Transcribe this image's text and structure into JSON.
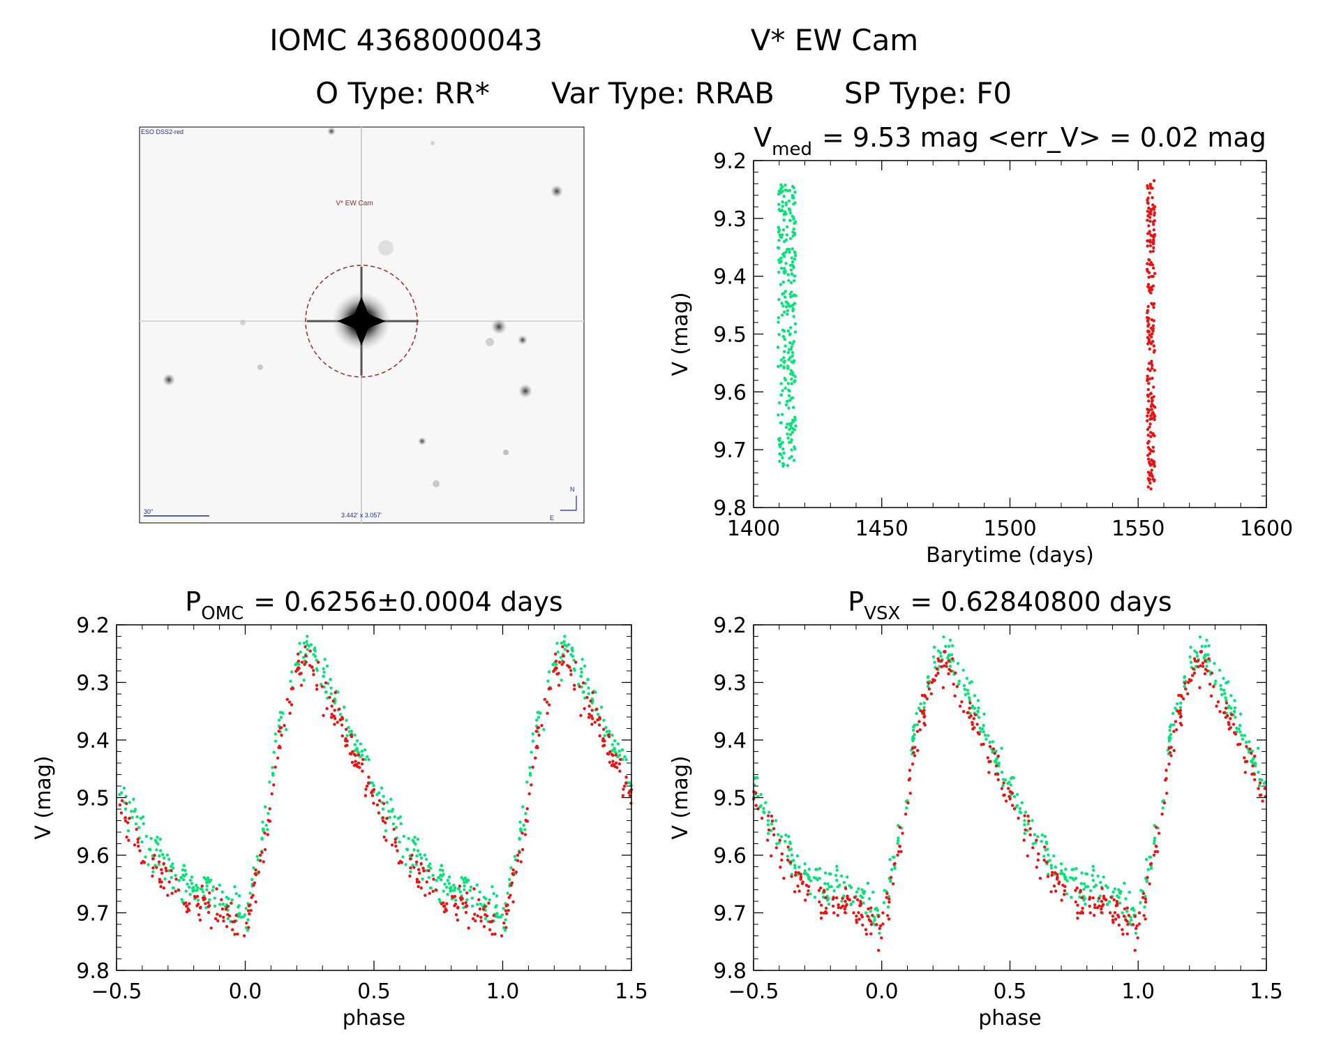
{
  "header": {
    "title_id": "IOMC 4368000043",
    "title_name": "V* EW Cam",
    "subtitle_otype": "O Type: RR*",
    "subtitle_vartype": "Var Type: RRAB",
    "subtitle_sptype": "SP Type: F0"
  },
  "finder": {
    "survey": "ESO DSS2-red",
    "target": "V* EW Cam",
    "scale_label": "30\"",
    "fov": "3.442' x 3.057'",
    "north": "N",
    "east": "E"
  },
  "colors": {
    "camera1": "#00e676",
    "camera2": "#ee1111",
    "marker": "#aa2222",
    "label": "#1a2a99"
  },
  "chart_data": [
    {
      "id": "lightcurve",
      "type": "scatter",
      "title_prefix": "V",
      "title_sub": "med",
      "title_rest": "= 9.53 mag <err_V> = 0.02 mag",
      "xlabel": "Barytime (days)",
      "ylabel": "V (mag)",
      "xlim": [
        1400,
        1600
      ],
      "ylim": [
        9.2,
        9.8
      ],
      "y_inverted": true,
      "xticks": [
        "1400",
        "1450",
        "1500",
        "1550",
        "1600"
      ],
      "yticks": [
        "9.2",
        "9.3",
        "9.4",
        "9.5",
        "9.6",
        "9.7",
        "9.8"
      ],
      "series": [
        {
          "name": "camera1",
          "color": "#00e676",
          "x_range": [
            1409.5,
            1416.5
          ],
          "y_range": [
            9.24,
            9.73
          ],
          "n_points": 260
        },
        {
          "name": "camera2",
          "color": "#ee1111",
          "x_range": [
            1553.5,
            1556.5
          ],
          "y_range": [
            9.23,
            9.77
          ],
          "n_points": 220
        }
      ]
    },
    {
      "id": "phase-omc",
      "type": "scatter",
      "title_prefix": "P",
      "title_sub": "OMC",
      "title_rest": "= 0.6256±0.0004 days",
      "xlabel": "phase",
      "ylabel": "V (mag)",
      "xlim": [
        -0.5,
        1.5
      ],
      "ylim": [
        9.2,
        9.8
      ],
      "y_inverted": true,
      "xticks": [
        "−0.5",
        "0.0",
        "0.5",
        "1.0",
        "1.5"
      ],
      "yticks": [
        "9.2",
        "9.3",
        "9.4",
        "9.5",
        "9.6",
        "9.7",
        "9.8"
      ],
      "period_days": 0.6256,
      "phased_light_curve": {
        "phase": [
          0.0,
          0.03,
          0.06,
          0.09,
          0.12,
          0.16,
          0.2,
          0.25,
          0.3,
          0.35,
          0.4,
          0.45,
          0.5,
          0.55,
          0.6,
          0.65,
          0.7,
          0.75,
          0.8,
          0.85,
          0.9,
          0.95,
          1.0
        ],
        "V": [
          9.72,
          9.66,
          9.59,
          9.54,
          9.41,
          9.35,
          9.28,
          9.25,
          9.3,
          9.34,
          9.39,
          9.44,
          9.49,
          9.54,
          9.58,
          9.61,
          9.64,
          9.66,
          9.67,
          9.67,
          9.68,
          9.7,
          9.72
        ]
      },
      "series": [
        {
          "name": "camera1",
          "color": "#00e676",
          "n_points": 260
        },
        {
          "name": "camera2",
          "color": "#ee1111",
          "n_points": 220
        }
      ]
    },
    {
      "id": "phase-vsx",
      "type": "scatter",
      "title_prefix": "P",
      "title_sub": "VSX",
      "title_rest": "= 0.62840800 days",
      "xlabel": "phase",
      "ylabel": "V (mag)",
      "xlim": [
        -0.5,
        1.5
      ],
      "ylim": [
        9.2,
        9.8
      ],
      "y_inverted": true,
      "xticks": [
        "−0.5",
        "0.0",
        "0.5",
        "1.0",
        "1.5"
      ],
      "yticks": [
        "9.2",
        "9.3",
        "9.4",
        "9.5",
        "9.6",
        "9.7",
        "9.8"
      ],
      "period_days": 0.628408,
      "phased_light_curve": {
        "phase": [
          0.0,
          0.03,
          0.06,
          0.09,
          0.12,
          0.16,
          0.2,
          0.25,
          0.3,
          0.35,
          0.4,
          0.45,
          0.5,
          0.55,
          0.6,
          0.65,
          0.7,
          0.75,
          0.8,
          0.85,
          0.9,
          0.95,
          1.0
        ],
        "V": [
          9.72,
          9.66,
          9.59,
          9.54,
          9.41,
          9.35,
          9.28,
          9.25,
          9.3,
          9.34,
          9.39,
          9.44,
          9.49,
          9.54,
          9.58,
          9.61,
          9.64,
          9.66,
          9.67,
          9.67,
          9.68,
          9.7,
          9.72
        ]
      },
      "series": [
        {
          "name": "camera1",
          "color": "#00e676",
          "n_points": 260
        },
        {
          "name": "camera2",
          "color": "#ee1111",
          "n_points": 220
        }
      ]
    }
  ]
}
